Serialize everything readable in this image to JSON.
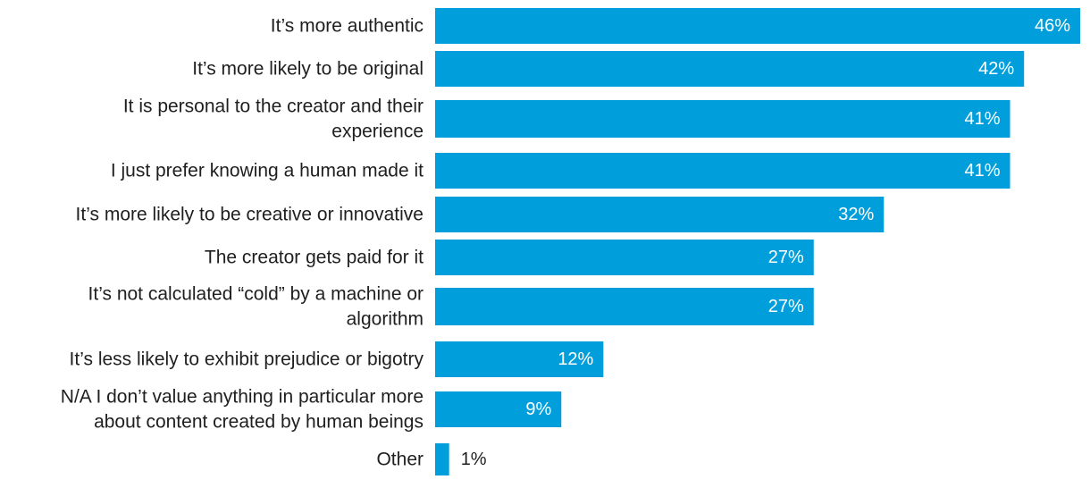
{
  "chart_data": {
    "type": "bar",
    "orientation": "horizontal",
    "title": "",
    "xlabel": "",
    "ylabel": "",
    "xlim": [
      0,
      46
    ],
    "grid": false,
    "legend": "none",
    "bar_color": "#009fdc",
    "value_suffix": "%",
    "categories": [
      [
        "It’s more authentic"
      ],
      [
        "It’s more likely to be original"
      ],
      [
        "It is personal to the creator and their",
        "experience"
      ],
      [
        "I just prefer knowing a human made it"
      ],
      [
        "It’s more likely to be creative or innovative"
      ],
      [
        "The creator gets paid for it"
      ],
      [
        "It’s not calculated “cold” by a machine or",
        "algorithm"
      ],
      [
        "It’s less likely to exhibit prejudice or bigotry"
      ],
      [
        "N/A I don’t value anything in particular more",
        "about content created by human beings"
      ],
      [
        "Other"
      ]
    ],
    "values": [
      46,
      42,
      41,
      41,
      32,
      27,
      27,
      12,
      9,
      1
    ],
    "value_labels": [
      "46%",
      "42%",
      "41%",
      "41%",
      "32%",
      "27%",
      "27%",
      "12%",
      "9%",
      "1%"
    ]
  }
}
